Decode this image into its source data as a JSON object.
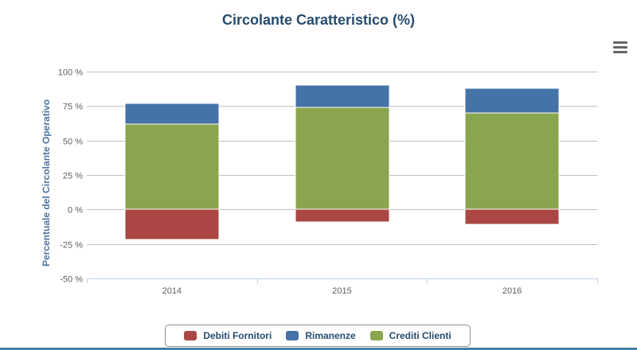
{
  "chart_data": {
    "type": "bar",
    "stacked": true,
    "title": "Circolante Caratteristico (%)",
    "xlabel": "",
    "ylabel": "Percentuale del Circolante Operativo",
    "categories": [
      "2014",
      "2015",
      "2016"
    ],
    "ylim": [
      -50,
      100
    ],
    "yticks": [
      100,
      75,
      50,
      25,
      0,
      -25,
      -50
    ],
    "ytick_suffix": " %",
    "grid": true,
    "legend_position": "bottom-center",
    "series": [
      {
        "name": "Debiti Fornitori",
        "color": "#aa4643",
        "values": [
          -22,
          -9,
          -11
        ]
      },
      {
        "name": "Rimanenze",
        "color": "#4572a7",
        "values": [
          15,
          16,
          18
        ]
      },
      {
        "name": "Crediti Clienti",
        "color": "#89a54e",
        "values": [
          62,
          74,
          70
        ]
      }
    ]
  },
  "legend_order": [
    "Debiti Fornitori",
    "Rimanenze",
    "Crediti Clienti"
  ]
}
